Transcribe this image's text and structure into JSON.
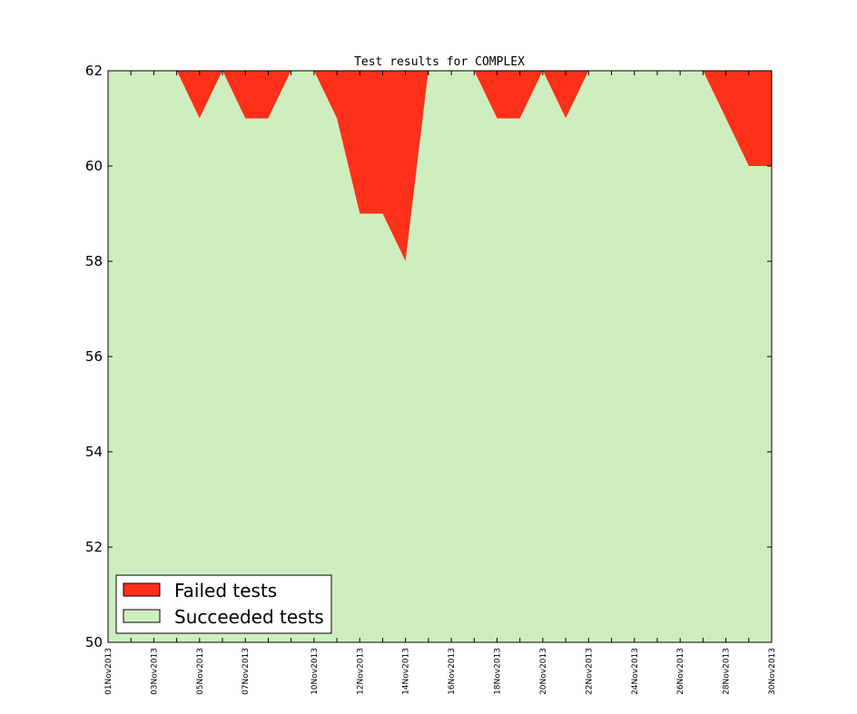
{
  "chart_data": {
    "type": "area",
    "title": "Test results for COMPLEX",
    "xlabel": "",
    "ylabel": "",
    "ylim": [
      50,
      62
    ],
    "yticks": [
      50,
      52,
      54,
      56,
      58,
      60,
      62
    ],
    "x": [
      "01Nov2013",
      "02Nov2013",
      "03Nov2013",
      "04Nov2013",
      "05Nov2013",
      "06Nov2013",
      "07Nov2013",
      "08Nov2013",
      "09Nov2013",
      "10Nov2013",
      "11Nov2013",
      "12Nov2013",
      "13Nov2013",
      "14Nov2013",
      "15Nov2013",
      "16Nov2013",
      "17Nov2013",
      "18Nov2013",
      "19Nov2013",
      "20Nov2013",
      "21Nov2013",
      "22Nov2013",
      "23Nov2013",
      "24Nov2013",
      "25Nov2013",
      "26Nov2013",
      "27Nov2013",
      "28Nov2013",
      "29Nov2013",
      "30Nov2013"
    ],
    "xtick_labels": [
      "01Nov2013",
      "03Nov2013",
      "05Nov2013",
      "07Nov2013",
      "10Nov2013",
      "12Nov2013",
      "14Nov2013",
      "16Nov2013",
      "18Nov2013",
      "20Nov2013",
      "22Nov2013",
      "24Nov2013",
      "26Nov2013",
      "28Nov2013",
      "30Nov2013"
    ],
    "total": 62,
    "series": [
      {
        "name": "Failed tests",
        "color": "#ff3019",
        "values": [
          0,
          0,
          0,
          0,
          1,
          0,
          1,
          1,
          0,
          0,
          1,
          3,
          3,
          4,
          0,
          0,
          0,
          1,
          1,
          0,
          1,
          0,
          0,
          0,
          0,
          0,
          0,
          1,
          2,
          2
        ]
      },
      {
        "name": "Succeeded tests",
        "color": "#cfeebf",
        "values": [
          62,
          62,
          62,
          62,
          61,
          62,
          61,
          61,
          62,
          62,
          61,
          59,
          59,
          58,
          62,
          62,
          62,
          61,
          61,
          62,
          61,
          62,
          62,
          62,
          62,
          62,
          62,
          61,
          60,
          60
        ]
      }
    ],
    "legend": "lower-left",
    "grid": false
  }
}
